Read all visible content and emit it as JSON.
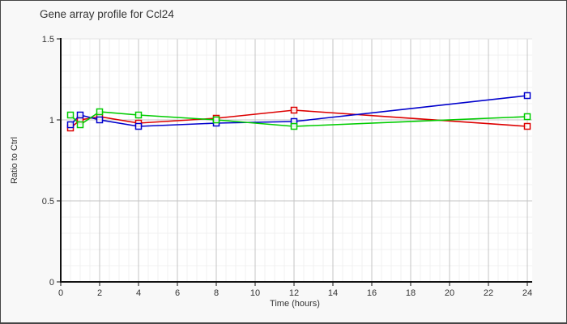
{
  "window": {
    "background": "#f8f8f8",
    "border_color": "#454545",
    "plot_background": "#ffffff"
  },
  "chart_data": {
    "type": "line",
    "title": "Gene array profile for Ccl24",
    "xlabel": "Time (hours)",
    "ylabel": "Ratio to Ctrl",
    "xlim": [
      0,
      24.25
    ],
    "ylim": [
      0,
      1.5
    ],
    "x_tick_labels": [
      "0",
      "2",
      "4",
      "6",
      "8",
      "10",
      "12",
      "14",
      "16",
      "18",
      "20",
      "22",
      "24"
    ],
    "y_tick_labels": [
      "0",
      "0.5",
      "1",
      "1.5"
    ],
    "grid": "on",
    "minor_grid": {
      "x_step": 0.5,
      "y_step": 0.1
    },
    "legend": "none",
    "marker": "open-square",
    "x": [
      0.5,
      1,
      2,
      4,
      8,
      12,
      24
    ],
    "series": [
      {
        "name": "red-series",
        "color": "#dd0000",
        "values": [
          0.95,
          1.0,
          1.02,
          0.98,
          1.01,
          1.06,
          0.96
        ]
      },
      {
        "name": "blue-series",
        "color": "#0000cc",
        "values": [
          0.97,
          1.03,
          1.0,
          0.96,
          0.98,
          0.99,
          1.15
        ]
      },
      {
        "name": "green-series",
        "color": "#00cc00",
        "values": [
          1.03,
          0.97,
          1.05,
          1.03,
          1.0,
          0.96,
          1.02
        ]
      }
    ],
    "grid_colors": {
      "minor": "#f1f1f1",
      "major": "#c4c4c4",
      "top_edge": "#e3e3e3",
      "axis": "#111111"
    }
  }
}
